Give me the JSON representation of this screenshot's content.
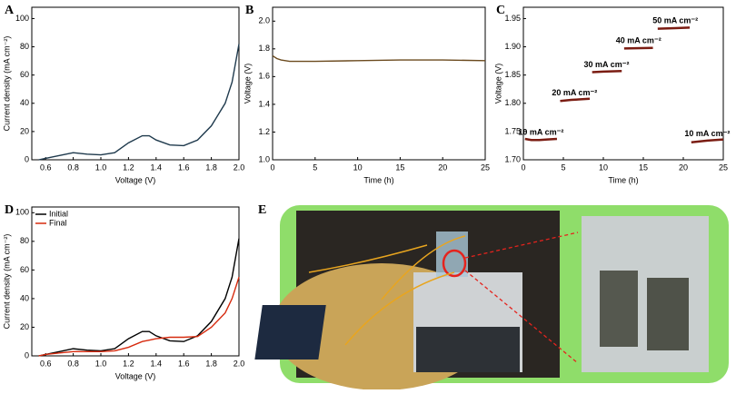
{
  "chart_data": [
    {
      "type": "line",
      "label": "A",
      "xlabel": "Voltage (V)",
      "ylabel": "Current density (mA cm⁻²)",
      "xlim": [
        0.5,
        2.0
      ],
      "xticks": [
        0.6,
        0.8,
        {
          "value": 1.0,
          "label": "1.0"
        },
        1.2,
        1.4,
        1.6,
        1.8,
        {
          "value": 2.0,
          "label": "2.0"
        }
      ],
      "ylim": [
        0,
        108
      ],
      "yticks": [
        0,
        20,
        40,
        60,
        80,
        100
      ],
      "x": [
        0.55,
        0.6,
        0.7,
        0.8,
        0.9,
        1.0,
        1.1,
        1.2,
        1.3,
        1.35,
        1.4,
        1.5,
        1.6,
        1.7,
        1.8,
        1.9,
        1.95,
        2.0
      ],
      "series": [
        {
          "color": "#1f3a4d",
          "values": [
            0,
            1,
            3,
            5,
            4,
            3.5,
            5,
            12,
            17,
            17,
            14,
            10.5,
            10,
            14,
            24,
            40,
            55,
            82
          ]
        }
      ]
    },
    {
      "type": "line",
      "label": "B",
      "xlabel": "Time (h)",
      "ylabel": "Voltage (V)",
      "xlim": [
        0,
        25
      ],
      "xticks": [
        0,
        5,
        10,
        15,
        20,
        25
      ],
      "ylim": [
        1.0,
        2.1
      ],
      "yticks": [
        {
          "value": 1.0,
          "label": "1.0"
        },
        1.2,
        1.4,
        1.6,
        1.8,
        {
          "value": 2.0,
          "label": "2.0"
        }
      ],
      "x": [
        0,
        0.5,
        1,
        2,
        5,
        10,
        15,
        20,
        25
      ],
      "series": [
        {
          "color": "#6b4a1e",
          "values": [
            1.75,
            1.73,
            1.72,
            1.71,
            1.71,
            1.715,
            1.72,
            1.72,
            1.715
          ]
        }
      ]
    },
    {
      "type": "line",
      "label": "C",
      "xlabel": "Time (h)",
      "ylabel": "Voltage (V)",
      "xlim": [
        0,
        25
      ],
      "xticks": [
        0,
        5,
        10,
        15,
        20,
        25
      ],
      "ylim": [
        1.7,
        1.97
      ],
      "yticks": [
        {
          "value": 1.7,
          "label": "1.70"
        },
        1.75,
        {
          "value": 1.8,
          "label": "1.80"
        },
        1.85,
        {
          "value": 1.9,
          "label": "1.90"
        },
        1.95
      ],
      "x": [
        0.2,
        1,
        2,
        3,
        4.2,
        4.4,
        4.6,
        6,
        8.3,
        8.5,
        8.6,
        10,
        12.3,
        12.5,
        12.6,
        16.2,
        16.4,
        16.8,
        19,
        20.8,
        20.9,
        21,
        23,
        25
      ],
      "series": [
        {
          "color": "#7a1c12",
          "values": [
            1.737,
            1.735,
            1.735,
            1.736,
            1.737,
            null,
            1.804,
            1.806,
            1.808,
            null,
            1.855,
            1.856,
            1.857,
            null,
            1.897,
            1.898,
            null,
            1.932,
            1.933,
            1.934,
            null,
            1.731,
            1.734,
            1.736
          ]
        }
      ],
      "annotations": [
        {
          "text": "10 mA cm⁻²",
          "x": 2.2,
          "y": 1.748
        },
        {
          "text": "20 mA cm⁻²",
          "x": 6.4,
          "y": 1.818
        },
        {
          "text": "30 mA cm⁻²",
          "x": 10.4,
          "y": 1.868
        },
        {
          "text": "40 mA cm⁻²",
          "x": 14.4,
          "y": 1.91
        },
        {
          "text": "50 mA cm⁻²",
          "x": 19,
          "y": 1.946
        },
        {
          "text": "10 mA cm⁻²",
          "x": 23,
          "y": 1.746
        }
      ]
    },
    {
      "type": "line",
      "label": "D",
      "xlabel": "Voltage (V)",
      "ylabel": "Current density (mA cm⁻²)",
      "legend": "upper left",
      "xlim": [
        0.5,
        2.0
      ],
      "xticks": [
        0.6,
        0.8,
        {
          "value": 1.0,
          "label": "1.0"
        },
        1.2,
        1.4,
        1.6,
        1.8,
        {
          "value": 2.0,
          "label": "2.0"
        }
      ],
      "ylim": [
        0,
        104
      ],
      "yticks": [
        0,
        20,
        40,
        60,
        80,
        100
      ],
      "x": [
        0.55,
        0.6,
        0.7,
        0.8,
        0.9,
        1.0,
        1.1,
        1.2,
        1.3,
        1.35,
        1.4,
        1.5,
        1.6,
        1.7,
        1.8,
        1.9,
        1.95,
        2.0
      ],
      "series": [
        {
          "name": "Initial",
          "color": "#000000",
          "values": [
            0,
            1,
            3,
            5,
            4,
            3.5,
            5,
            12,
            17,
            17,
            14,
            10.5,
            10,
            14,
            24,
            40,
            55,
            82
          ]
        },
        {
          "name": "Final",
          "color": "#d62a0e",
          "values": [
            0,
            1,
            2,
            3,
            3,
            3,
            3.5,
            6,
            10,
            11,
            12,
            13,
            13,
            13.5,
            20,
            30,
            40,
            55
          ]
        }
      ]
    }
  ],
  "photo_panel": {
    "label": "E"
  }
}
